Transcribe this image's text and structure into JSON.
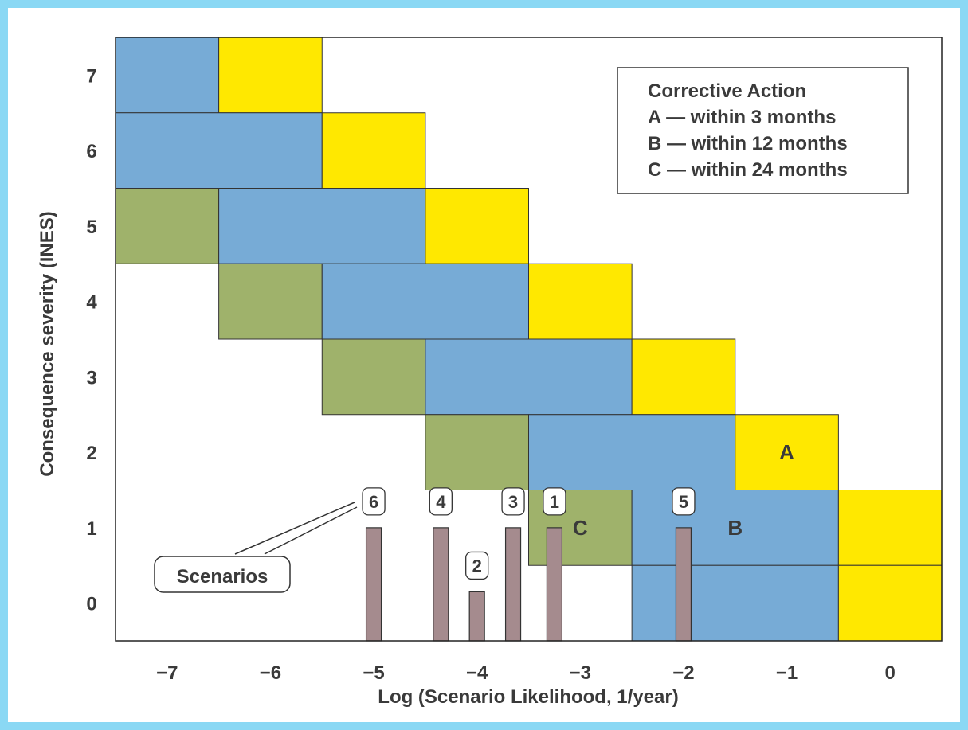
{
  "chart_data": {
    "type": "heatmap",
    "title": "",
    "xlabel": "Log (Scenario Likelihood, 1/year)",
    "ylabel": "Consequence severity (INES)",
    "x_ticks": [
      "−7",
      "−6",
      "−5",
      "−4",
      "−3",
      "−2",
      "−1",
      "0"
    ],
    "y_ticks": [
      "0",
      "1",
      "2",
      "3",
      "4",
      "5",
      "6",
      "7"
    ],
    "xlim": [
      -7.5,
      0.5
    ],
    "ylim": [
      -0.5,
      7.5
    ],
    "colors": {
      "A": "#ffe800",
      "B": "#77abd6",
      "C": "#9fb26b",
      "scenario": "#a58b8e",
      "frame": "#8ad8f4"
    },
    "zones": [
      {
        "category": "B",
        "x0": -7.5,
        "x1": -6.5,
        "y0": 6.5,
        "y1": 7.5
      },
      {
        "category": "A",
        "x0": -6.5,
        "x1": -5.5,
        "y0": 6.5,
        "y1": 7.5
      },
      {
        "category": "B",
        "x0": -7.5,
        "x1": -5.5,
        "y0": 5.5,
        "y1": 6.5
      },
      {
        "category": "A",
        "x0": -5.5,
        "x1": -4.5,
        "y0": 5.5,
        "y1": 6.5
      },
      {
        "category": "C",
        "x0": -7.5,
        "x1": -6.5,
        "y0": 4.5,
        "y1": 5.5
      },
      {
        "category": "B",
        "x0": -6.5,
        "x1": -4.5,
        "y0": 4.5,
        "y1": 5.5
      },
      {
        "category": "A",
        "x0": -4.5,
        "x1": -3.5,
        "y0": 4.5,
        "y1": 5.5
      },
      {
        "category": "C",
        "x0": -6.5,
        "x1": -5.5,
        "y0": 3.5,
        "y1": 4.5
      },
      {
        "category": "B",
        "x0": -5.5,
        "x1": -3.5,
        "y0": 3.5,
        "y1": 4.5
      },
      {
        "category": "A",
        "x0": -3.5,
        "x1": -2.5,
        "y0": 3.5,
        "y1": 4.5
      },
      {
        "category": "C",
        "x0": -5.5,
        "x1": -4.5,
        "y0": 2.5,
        "y1": 3.5
      },
      {
        "category": "B",
        "x0": -4.5,
        "x1": -2.5,
        "y0": 2.5,
        "y1": 3.5
      },
      {
        "category": "A",
        "x0": -2.5,
        "x1": -1.5,
        "y0": 2.5,
        "y1": 3.5
      },
      {
        "category": "C",
        "x0": -4.5,
        "x1": -3.5,
        "y0": 1.5,
        "y1": 2.5
      },
      {
        "category": "B",
        "x0": -3.5,
        "x1": -1.5,
        "y0": 1.5,
        "y1": 2.5
      },
      {
        "category": "A",
        "x0": -1.5,
        "x1": -0.5,
        "y0": 1.5,
        "y1": 2.5
      },
      {
        "category": "C",
        "x0": -3.5,
        "x1": -2.5,
        "y0": 0.5,
        "y1": 1.5
      },
      {
        "category": "B",
        "x0": -2.5,
        "x1": -0.5,
        "y0": 0.5,
        "y1": 1.5
      },
      {
        "category": "A",
        "x0": -0.5,
        "x1": 0.5,
        "y0": 0.5,
        "y1": 1.5
      },
      {
        "category": "B",
        "x0": -2.5,
        "x1": -0.5,
        "y0": -0.5,
        "y1": 0.5
      },
      {
        "category": "A",
        "x0": -0.5,
        "x1": 0.5,
        "y0": -0.5,
        "y1": 0.5
      }
    ],
    "zone_labels": [
      {
        "text": "A",
        "x": -1.0,
        "y": 2.0
      },
      {
        "text": "B",
        "x": -1.5,
        "y": 1.0
      },
      {
        "text": "C",
        "x": -3.0,
        "y": 1.0
      }
    ],
    "scenarios": [
      {
        "label": "6",
        "x": -5.0,
        "value": 1.0
      },
      {
        "label": "4",
        "x": -4.35,
        "value": 1.0
      },
      {
        "label": "2",
        "x": -4.0,
        "value": 0.15
      },
      {
        "label": "3",
        "x": -3.65,
        "value": 1.0
      },
      {
        "label": "1",
        "x": -3.25,
        "value": 1.0
      },
      {
        "label": "5",
        "x": -2.0,
        "value": 1.0
      }
    ],
    "scenarios_callout": "Scenarios",
    "legend": {
      "position": "top-right",
      "title": "Corrective Action",
      "entries": [
        "A — within 3 months",
        "B — within 12 months",
        "C — within 24 months"
      ]
    },
    "grid": false
  }
}
